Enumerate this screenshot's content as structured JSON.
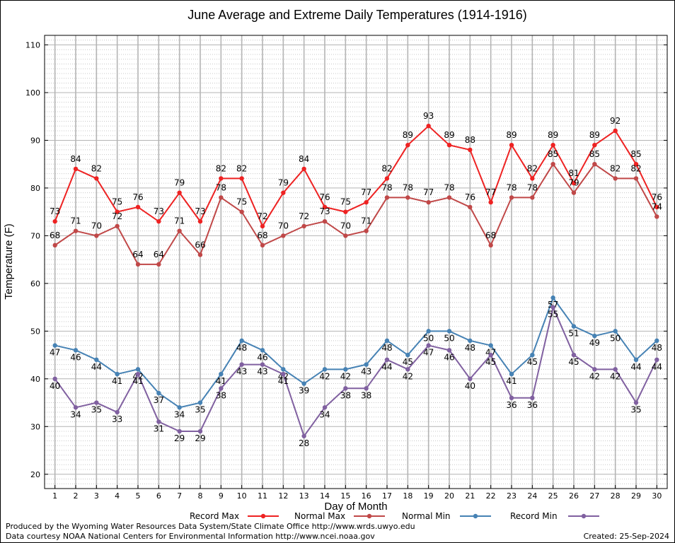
{
  "chart_data": {
    "type": "line",
    "title": "June Average and Extreme Daily Temperatures (1914-1916)",
    "xlabel": "Day of Month",
    "ylabel": "Temperature (F)",
    "x": [
      1,
      2,
      3,
      4,
      5,
      6,
      7,
      8,
      9,
      10,
      11,
      12,
      13,
      14,
      15,
      16,
      17,
      18,
      19,
      20,
      21,
      22,
      23,
      24,
      25,
      26,
      27,
      28,
      29,
      30
    ],
    "xlim": [
      0.5,
      30.5
    ],
    "ylim": [
      17,
      112
    ],
    "yticks": [
      20,
      30,
      40,
      50,
      60,
      70,
      80,
      90,
      100,
      110
    ],
    "grid": true,
    "legend_position": "bottom",
    "series": [
      {
        "name": "Record Max",
        "color": "#ee2222",
        "values": [
          73,
          84,
          82,
          75,
          76,
          73,
          79,
          73,
          82,
          82,
          72,
          79,
          84,
          76,
          75,
          77,
          82,
          89,
          93,
          89,
          88,
          77,
          89,
          82,
          89,
          81,
          89,
          92,
          85,
          76
        ]
      },
      {
        "name": "Normal Max",
        "color": "#c04848",
        "values": [
          68,
          71,
          70,
          72,
          64,
          64,
          71,
          66,
          78,
          75,
          68,
          70,
          72,
          73,
          70,
          71,
          78,
          78,
          77,
          78,
          76,
          68,
          78,
          78,
          85,
          79,
          85,
          82,
          82,
          74
        ]
      },
      {
        "name": "Normal Min",
        "color": "#4682b4",
        "values": [
          47,
          46,
          44,
          41,
          42,
          37,
          34,
          35,
          41,
          48,
          46,
          42,
          39,
          42,
          42,
          43,
          48,
          45,
          50,
          50,
          48,
          47,
          41,
          45,
          57,
          51,
          49,
          50,
          44,
          48
        ]
      },
      {
        "name": "Record Min",
        "color": "#8060a0",
        "values": [
          40,
          34,
          35,
          33,
          41,
          31,
          29,
          29,
          38,
          43,
          43,
          41,
          28,
          34,
          38,
          38,
          44,
          42,
          47,
          46,
          40,
          45,
          36,
          36,
          55,
          45,
          42,
          42,
          35,
          44
        ]
      }
    ]
  },
  "footer": {
    "produced_by": "Produced by the Wyoming Water Resources Data System/State Climate Office http://www.wrds.uwyo.edu",
    "courtesy": "Data courtesy NOAA National Centers for Environmental Information http://www.ncei.noaa.gov",
    "created": "Created:  25-Sep-2024"
  }
}
